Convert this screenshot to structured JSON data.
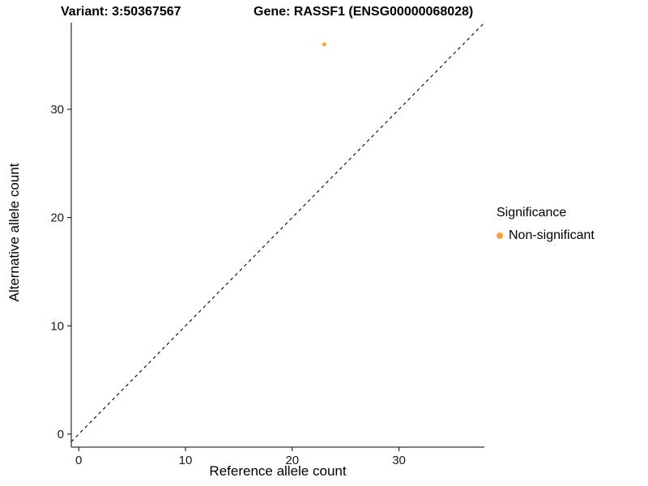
{
  "chart_data": {
    "type": "scatter",
    "title_left": "Variant: 3:50367567",
    "title_right": "Gene: RASSF1 (ENSG00000068028)",
    "xlabel": "Reference allele count",
    "ylabel": "Alternative allele count",
    "xlim": [
      -0.7,
      38
    ],
    "ylim": [
      -1.2,
      38
    ],
    "xticks": [
      0,
      10,
      20,
      30
    ],
    "yticks": [
      0,
      10,
      20,
      30
    ],
    "grid": false,
    "reference_line": {
      "type": "identity",
      "slope": 1,
      "intercept": 0,
      "style": "dashed",
      "color": "#000000"
    },
    "points": [
      {
        "x": 23,
        "y": 36,
        "series": "Non-significant"
      }
    ],
    "point_radius": 2.5,
    "axis_color": "#000000",
    "tick_label_color": "#1a1a1a",
    "legend": {
      "position": "right",
      "title": "Significance",
      "entries": [
        {
          "label": "Non-significant",
          "color": "#F8A13F"
        }
      ]
    }
  }
}
